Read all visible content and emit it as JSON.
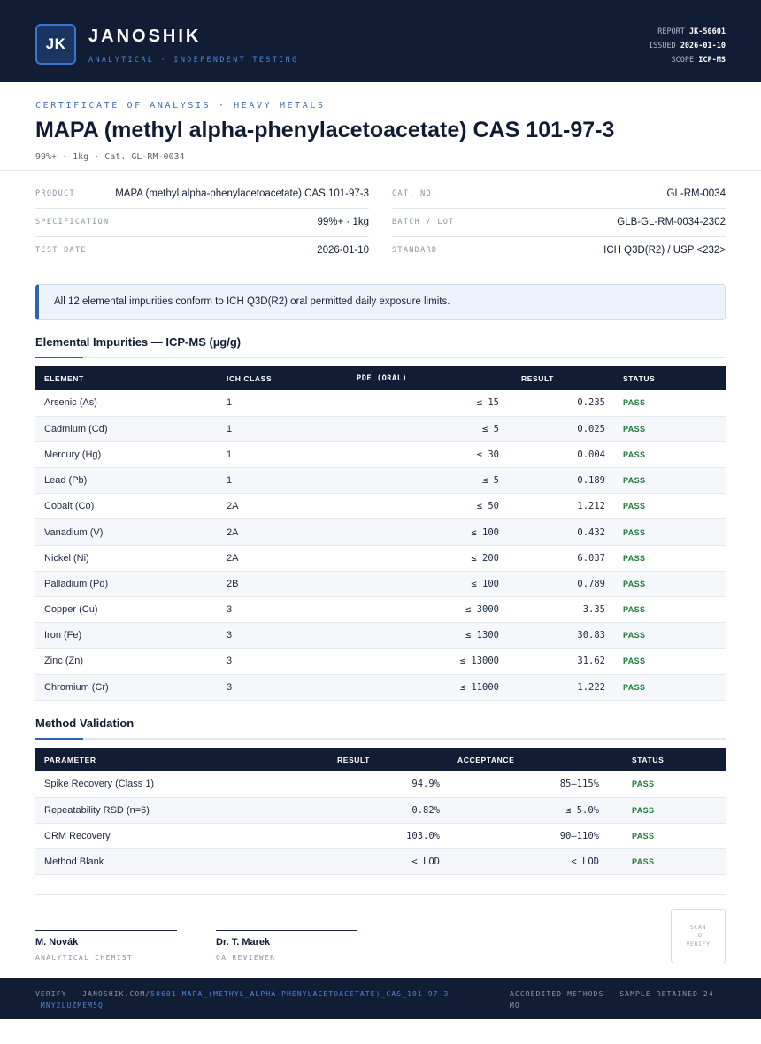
{
  "header": {
    "logo_initials": "JK",
    "brand": "JANOSHIK",
    "tagline": "ANALYTICAL · INDEPENDENT TESTING",
    "report_label": "REPORT",
    "report_value": "JK-50601",
    "issued_label": "ISSUED",
    "issued_value": "2026-01-10",
    "scope_label": "SCOPE",
    "scope_value": "ICP-MS"
  },
  "document": {
    "kicker": "CERTIFICATE OF ANALYSIS · HEAVY METALS",
    "title": "MAPA (methyl alpha-phenylacetoacetate) CAS 101-97-3",
    "subtitle": "99%+ · 1kg  ·  Cat. GL-RM-0034"
  },
  "info_left": [
    {
      "label": "PRODUCT",
      "value": "MAPA (methyl alpha-phenylacetoacetate) CAS 101-97-3"
    },
    {
      "label": "SPECIFICATION",
      "value": "99%+ · 1kg"
    },
    {
      "label": "TEST DATE",
      "value": "2026-01-10"
    }
  ],
  "info_right": [
    {
      "label": "CAT. NO.",
      "value": "GL-RM-0034"
    },
    {
      "label": "BATCH / LOT",
      "value": "GLB-GL-RM-0034-2302"
    },
    {
      "label": "STANDARD",
      "value": "ICH Q3D(R2) / USP <232>"
    }
  ],
  "notice": "All 12 elemental impurities conform to ICH Q3D(R2) oral permitted daily exposure limits.",
  "impurities": {
    "title": "Elemental Impurities — ICP-MS (µg/g)",
    "headers": [
      "ELEMENT",
      "ICH CLASS",
      "PDE (ORAL)",
      "RESULT",
      "STATUS"
    ],
    "rows": [
      {
        "element": "Arsenic (As)",
        "cls": "1",
        "pde": "≤ 15",
        "result": "0.235",
        "status": "PASS"
      },
      {
        "element": "Cadmium (Cd)",
        "cls": "1",
        "pde": "≤ 5",
        "result": "0.025",
        "status": "PASS"
      },
      {
        "element": "Mercury (Hg)",
        "cls": "1",
        "pde": "≤ 30",
        "result": "0.004",
        "status": "PASS"
      },
      {
        "element": "Lead (Pb)",
        "cls": "1",
        "pde": "≤ 5",
        "result": "0.189",
        "status": "PASS"
      },
      {
        "element": "Cobalt (Co)",
        "cls": "2A",
        "pde": "≤ 50",
        "result": "1.212",
        "status": "PASS"
      },
      {
        "element": "Vanadium (V)",
        "cls": "2A",
        "pde": "≤ 100",
        "result": "0.432",
        "status": "PASS"
      },
      {
        "element": "Nickel (Ni)",
        "cls": "2A",
        "pde": "≤ 200",
        "result": "6.037",
        "status": "PASS"
      },
      {
        "element": "Palladium (Pd)",
        "cls": "2B",
        "pde": "≤ 100",
        "result": "0.789",
        "status": "PASS"
      },
      {
        "element": "Copper (Cu)",
        "cls": "3",
        "pde": "≤ 3000",
        "result": "3.35",
        "status": "PASS"
      },
      {
        "element": "Iron (Fe)",
        "cls": "3",
        "pde": "≤ 1300",
        "result": "30.83",
        "status": "PASS"
      },
      {
        "element": "Zinc (Zn)",
        "cls": "3",
        "pde": "≤ 13000",
        "result": "31.62",
        "status": "PASS"
      },
      {
        "element": "Chromium (Cr)",
        "cls": "3",
        "pde": "≤ 11000",
        "result": "1.222",
        "status": "PASS"
      }
    ]
  },
  "validation": {
    "title": "Method Validation",
    "headers": [
      "PARAMETER",
      "RESULT",
      "ACCEPTANCE",
      "STATUS"
    ],
    "rows": [
      {
        "parameter": "Spike Recovery (Class 1)",
        "result": "94.9%",
        "acceptance": "85–115%",
        "status": "PASS"
      },
      {
        "parameter": "Repeatability RSD (n=6)",
        "result": "0.82%",
        "acceptance": "≤ 5.0%",
        "status": "PASS"
      },
      {
        "parameter": "CRM Recovery",
        "result": "103.0%",
        "acceptance": "90–110%",
        "status": "PASS"
      },
      {
        "parameter": "Method Blank",
        "result": "< LOD",
        "acceptance": "< LOD",
        "status": "PASS"
      }
    ]
  },
  "signatures": [
    {
      "name": "M. Novák",
      "role": "ANALYTICAL CHEMIST"
    },
    {
      "name": "Dr. T. Marek",
      "role": "QA REVIEWER"
    }
  ],
  "scan": [
    "SCAN",
    "TO",
    "VERIFY"
  ],
  "footer": {
    "verify_prefix": "VERIFY · JANOSHIK.COM/",
    "verify_path": "50601-MAPA_(METHYL_ALPHA-PHENYLACETOACETATE)_CAS_101-97-3_MNY2LUZMEM5Q",
    "right": "ACCREDITED METHODS · SAMPLE RETAINED 24 MO"
  },
  "colors": {
    "navy": "#111c35",
    "accent_blue": "#2d63b3",
    "pass_green": "#1f7a3a"
  }
}
